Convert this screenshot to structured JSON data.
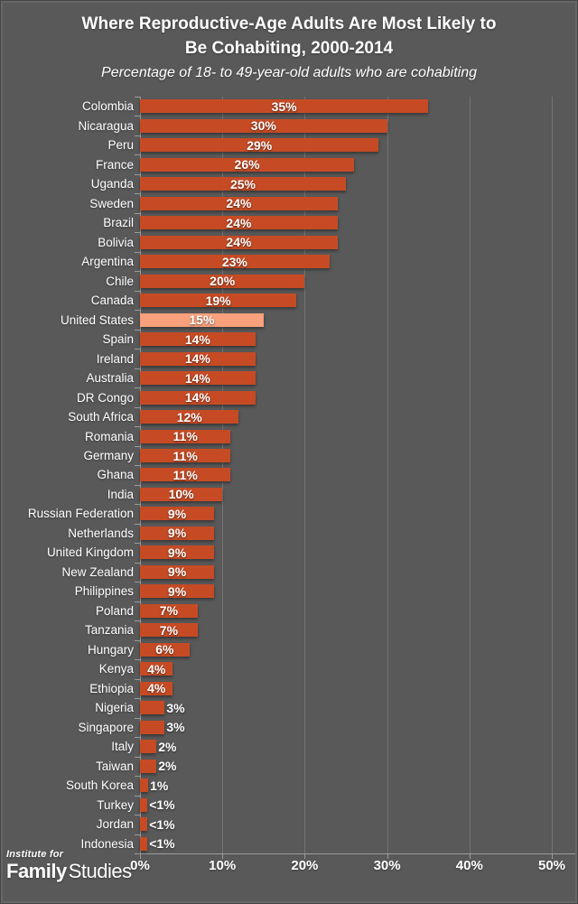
{
  "title": {
    "line1": "Where Reproductive-Age Adults Are Most Likely to",
    "line2": "Be Cohabiting, 2000-2014",
    "subtitle": "Percentage of 18- to 49-year-old adults who are cohabiting"
  },
  "chart_data": {
    "type": "bar",
    "orientation": "horizontal",
    "title": "Where Reproductive-Age Adults Are Most Likely to Be Cohabiting, 2000-2014",
    "subtitle": "Percentage of 18- to 49-year-old adults who are cohabiting",
    "xlim": [
      0,
      50
    ],
    "x_ticks": [
      "0%",
      "10%",
      "20%",
      "30%",
      "40%",
      "50%"
    ],
    "grid": true,
    "legend": false,
    "highlight_category": "United States",
    "categories": [
      "Colombia",
      "Nicaragua",
      "Peru",
      "France",
      "Uganda",
      "Sweden",
      "Brazil",
      "Bolivia",
      "Argentina",
      "Chile",
      "Canada",
      "United States",
      "Spain",
      "Ireland",
      "Australia",
      "DR Congo",
      "South Africa",
      "Romania",
      "Germany",
      "Ghana",
      "India",
      "Russian Federation",
      "Netherlands",
      "United Kingdom",
      "New Zealand",
      "Philippines",
      "Poland",
      "Tanzania",
      "Hungary",
      "Kenya",
      "Ethiopia",
      "Nigeria",
      "Singapore",
      "Italy",
      "Taiwan",
      "South Korea",
      "Turkey",
      "Jordan",
      "Indonesia"
    ],
    "values": [
      35,
      30,
      29,
      26,
      25,
      24,
      24,
      24,
      23,
      20,
      19,
      15,
      14,
      14,
      14,
      14,
      12,
      11,
      11,
      11,
      10,
      9,
      9,
      9,
      9,
      9,
      7,
      7,
      6,
      4,
      4,
      3,
      3,
      2,
      2,
      1,
      0.9,
      0.9,
      0.9
    ],
    "value_labels": [
      "35%",
      "30%",
      "29%",
      "26%",
      "25%",
      "24%",
      "24%",
      "24%",
      "23%",
      "20%",
      "19%",
      "15%",
      "14%",
      "14%",
      "14%",
      "14%",
      "12%",
      "11%",
      "11%",
      "11%",
      "10%",
      "9%",
      "9%",
      "9%",
      "9%",
      "9%",
      "7%",
      "7%",
      "6%",
      "4%",
      "4%",
      "3%",
      "3%",
      "2%",
      "2%",
      "1%",
      "<1%",
      "<1%",
      "<1%"
    ],
    "colors": {
      "background": "#595959",
      "bar": "#C64B25",
      "highlight_bar": "#F9A07C",
      "gridline": "#747474",
      "axis": "#9B9B9B",
      "text": "#FFFFFF"
    }
  },
  "footer": {
    "logo_line1": "Institute for",
    "logo_family": "Family",
    "logo_studies": "Studies"
  }
}
